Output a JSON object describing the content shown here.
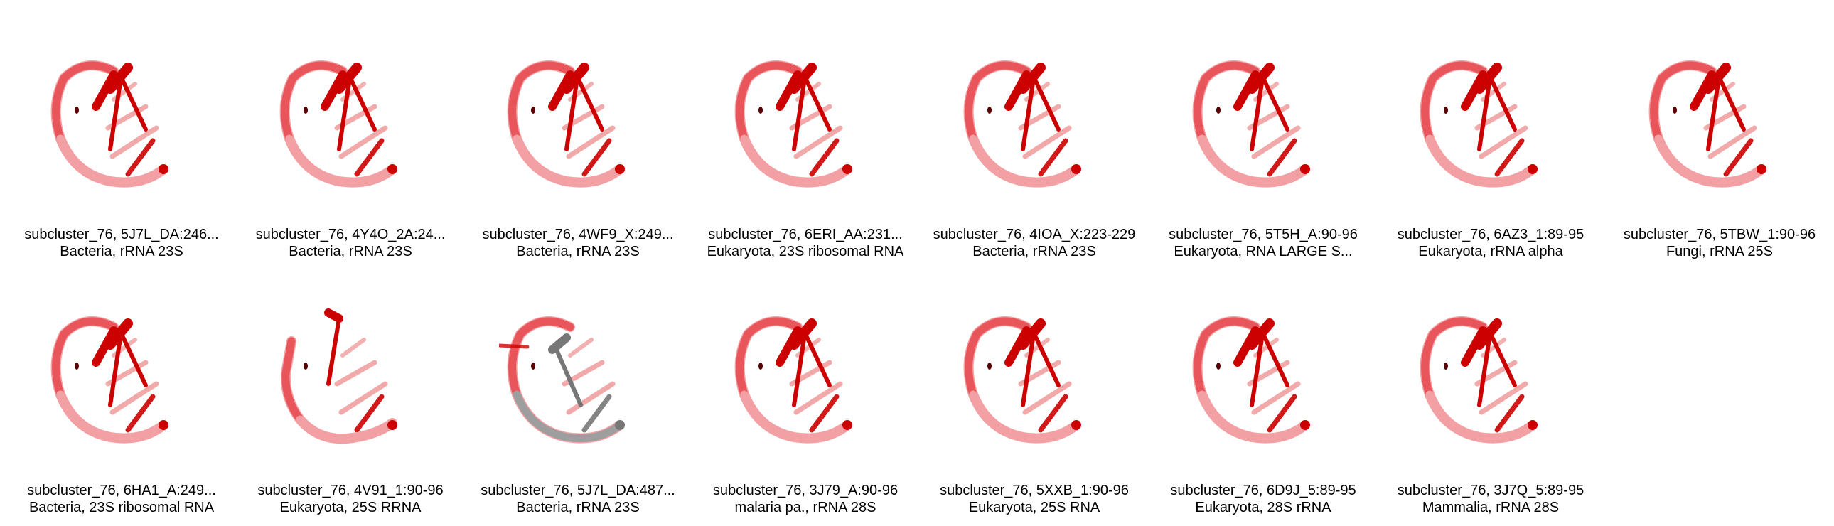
{
  "tiles": [
    {
      "title": "subcluster_76, 5J7L_DA:246...",
      "subtitle": "Bacteria, rRNA 23S",
      "style": "standard"
    },
    {
      "title": "subcluster_76, 4Y4O_2A:24...",
      "subtitle": "Bacteria, rRNA 23S",
      "style": "standard"
    },
    {
      "title": "subcluster_76, 4WF9_X:249...",
      "subtitle": "Bacteria, rRNA 23S",
      "style": "standard"
    },
    {
      "title": "subcluster_76, 6ERI_AA:231...",
      "subtitle": "Eukaryota, 23S ribosomal RNA",
      "style": "standard"
    },
    {
      "title": "subcluster_76, 4IOA_X:223-229",
      "subtitle": "Bacteria, rRNA 23S",
      "style": "standard"
    },
    {
      "title": "subcluster_76, 5T5H_A:90-96",
      "subtitle": "Eukaryota, RNA LARGE S...",
      "style": "standard"
    },
    {
      "title": "subcluster_76, 6AZ3_1:89-95",
      "subtitle": "Eukaryota, rRNA alpha",
      "style": "standard"
    },
    {
      "title": "subcluster_76, 5TBW_1:90-96",
      "subtitle": "Fungi, rRNA 25S",
      "style": "standard"
    },
    {
      "title": "subcluster_76, 6HA1_A:249...",
      "subtitle": "Bacteria, 23S ribosomal RNA",
      "style": "standard"
    },
    {
      "title": "subcluster_76, 4V91_1:90-96",
      "subtitle": "Eukaryota, 25S RRNA",
      "style": "broken"
    },
    {
      "title": "subcluster_76, 5J7L_DA:487...",
      "subtitle": "Bacteria, rRNA 23S",
      "style": "gray"
    },
    {
      "title": "subcluster_76, 3J79_A:90-96",
      "subtitle": "malaria pa., rRNA 28S",
      "style": "standard"
    },
    {
      "title": "subcluster_76, 5XXB_1:90-96",
      "subtitle": "Eukaryota, 25S RNA",
      "style": "standard"
    },
    {
      "title": "subcluster_76, 6D9J_5:89-95",
      "subtitle": "Eukaryota, 28S rRNA",
      "style": "standard"
    },
    {
      "title": "subcluster_76, 3J7Q_5:89-95",
      "subtitle": "Mammalia, rRNA 28S",
      "style": "standard"
    }
  ],
  "colors": {
    "backbone": "#e8565c",
    "backbone_light": "#f2a0a4",
    "base_dark": "#cc0000",
    "base_light": "#e87070",
    "gray": "#777777"
  }
}
